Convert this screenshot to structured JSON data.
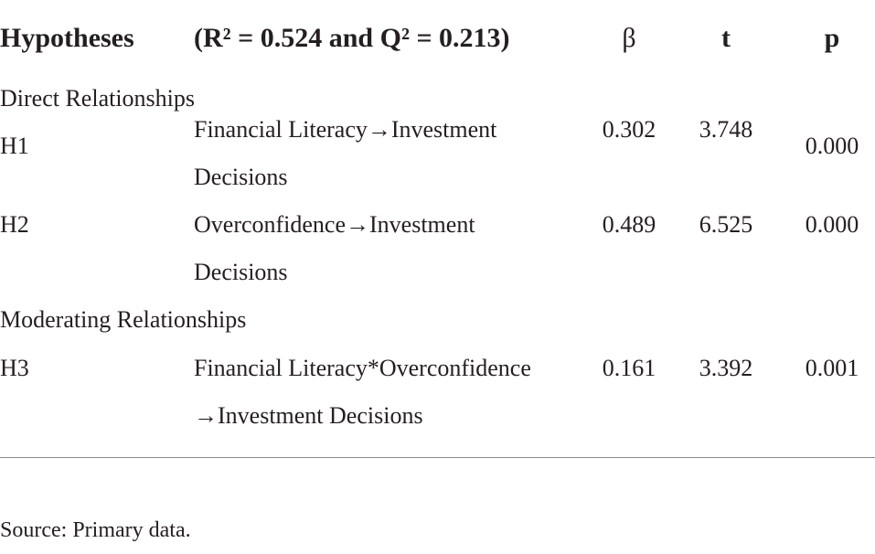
{
  "table": {
    "header": [
      "Hypotheses",
      "(R² = 0.524 and Q² = 0.213)",
      "β",
      "t",
      "p"
    ],
    "sections": [
      {
        "title": "Direct Relationships",
        "rows": [
          [
            "H1",
            "Financial Literacy→Investment Decisions",
            "0.302",
            "3.748",
            "0.000"
          ],
          [
            "H2",
            "Overconfidence→Investment Decisions",
            "0.489",
            "6.525",
            "0.000"
          ]
        ]
      },
      {
        "title": "Moderating Relationships",
        "rows": [
          [
            "H3",
            "Financial Literacy*Overconfidence →Investment Decisions",
            "0.161",
            "3.392",
            "0.001"
          ]
        ]
      }
    ]
  },
  "footnote": "Source: Primary data."
}
